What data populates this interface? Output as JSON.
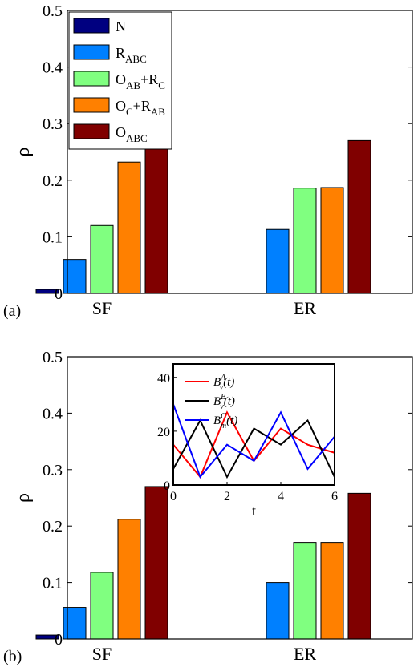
{
  "chart_data": [
    {
      "type": "bar",
      "panel_label": "(a)",
      "ylabel": "ρ",
      "ylim": [
        0,
        0.5
      ],
      "yticks": [
        "0",
        "0.1",
        "0.2",
        "0.3",
        "0.4",
        "0.5"
      ],
      "categories": [
        "SF",
        "ER"
      ],
      "legend": {
        "placement": "top-left",
        "entries": [
          {
            "main": "N",
            "sub": "",
            "main2": "",
            "sub2": ""
          },
          {
            "main": "R",
            "sub": "ABC",
            "main2": "",
            "sub2": ""
          },
          {
            "main": "O",
            "sub": "AB",
            "main2": "+R",
            "sub2": "C"
          },
          {
            "main": "O",
            "sub": "C",
            "main2": "+R",
            "sub2": "AB"
          },
          {
            "main": "O",
            "sub": "ABC",
            "main2": "",
            "sub2": ""
          }
        ]
      },
      "series": [
        {
          "color": "#000080",
          "values": [
            0.007,
            0.0
          ]
        },
        {
          "color": "#0080ff",
          "values": [
            0.06,
            0.113
          ]
        },
        {
          "color": "#80ff80",
          "values": [
            0.12,
            0.186
          ]
        },
        {
          "color": "#ff8000",
          "values": [
            0.232,
            0.187
          ]
        },
        {
          "color": "#800000",
          "values": [
            0.273,
            0.27
          ]
        }
      ]
    },
    {
      "type": "bar",
      "panel_label": "(b)",
      "ylabel": "ρ",
      "ylim": [
        0,
        0.5
      ],
      "yticks": [
        "0",
        "0.1",
        "0.2",
        "0.3",
        "0.4",
        "0.5"
      ],
      "categories": [
        "SF",
        "ER"
      ],
      "series": [
        {
          "color": "#000080",
          "values": [
            0.007,
            0.0
          ]
        },
        {
          "color": "#0080ff",
          "values": [
            0.056,
            0.1
          ]
        },
        {
          "color": "#80ff80",
          "values": [
            0.118,
            0.171
          ]
        },
        {
          "color": "#ff8000",
          "values": [
            0.212,
            0.171
          ]
        },
        {
          "color": "#800000",
          "values": [
            0.27,
            0.258
          ]
        }
      ]
    },
    {
      "type": "line",
      "inset_of": "(b)",
      "xlabel": "t",
      "xlim": [
        0,
        6
      ],
      "ylim": [
        0,
        45
      ],
      "xticks": [
        0,
        2,
        4,
        6
      ],
      "yticks": [
        0,
        20,
        40
      ],
      "x": [
        0,
        1,
        2,
        3,
        4,
        5,
        6
      ],
      "legend": {
        "placement": "top-left"
      },
      "series": [
        {
          "label_main": "B",
          "label_sup": "A",
          "label_sub": "v",
          "label_suffix": "(t)",
          "color": "#ff0000",
          "values": [
            15,
            3,
            27,
            9,
            21,
            15,
            12
          ]
        },
        {
          "label_main": "B",
          "label_sup": "B",
          "label_sub": "v",
          "label_suffix": "(t)",
          "color": "#000000",
          "values": [
            6,
            24,
            3,
            21,
            15,
            24,
            3
          ]
        },
        {
          "label_main": "B",
          "label_sup": "C",
          "label_sub": "m",
          "label_suffix": "(t)",
          "color": "#0000ff",
          "values": [
            30,
            3,
            15,
            9,
            27,
            6,
            18
          ]
        }
      ]
    }
  ]
}
